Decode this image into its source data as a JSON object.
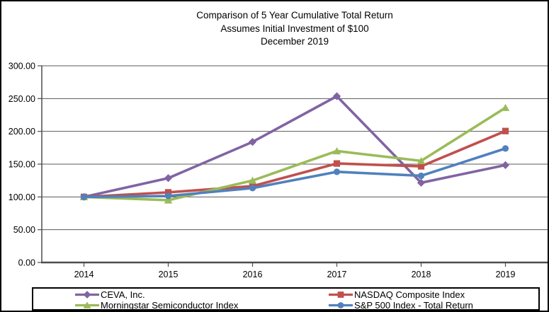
{
  "title": {
    "line1": "Comparison of 5 Year Cumulative Total Return",
    "line2": "Assumes Initial Investment of $100",
    "line3": "December 2019"
  },
  "chart_data": {
    "type": "line",
    "x": [
      "2014",
      "2015",
      "2016",
      "2017",
      "2018",
      "2019"
    ],
    "series": [
      {
        "name": "CEVA, Inc.",
        "color": "#8064A2",
        "marker": "diamond",
        "values": [
          100.0,
          128.65,
          183.88,
          253.61,
          121.6,
          148.53
        ]
      },
      {
        "name": "NASDAQ Composite Index",
        "color": "#C0504D",
        "marker": "square",
        "values": [
          100.0,
          106.96,
          116.45,
          150.96,
          146.67,
          200.49
        ]
      },
      {
        "name": "Morningstar Semiconductor Index",
        "color": "#9BBB59",
        "marker": "triangle",
        "values": [
          100.0,
          95.0,
          125.0,
          170.0,
          155.0,
          236.0
        ]
      },
      {
        "name": "S&P 500 Index - Total Return",
        "color": "#4F81BD",
        "marker": "circle",
        "values": [
          100.0,
          101.38,
          113.51,
          138.29,
          132.23,
          173.86
        ]
      }
    ],
    "ylim": [
      0,
      300
    ],
    "ytick_step": 50,
    "ytick_labels": [
      "0.00",
      "50.00",
      "100.00",
      "150.00",
      "200.00",
      "250.00",
      "300.00"
    ],
    "grid": "horizontal",
    "legend_position": "bottom",
    "axis_color": "#4d4d4d",
    "grid_color": "#595959",
    "text_color": "#000000"
  }
}
